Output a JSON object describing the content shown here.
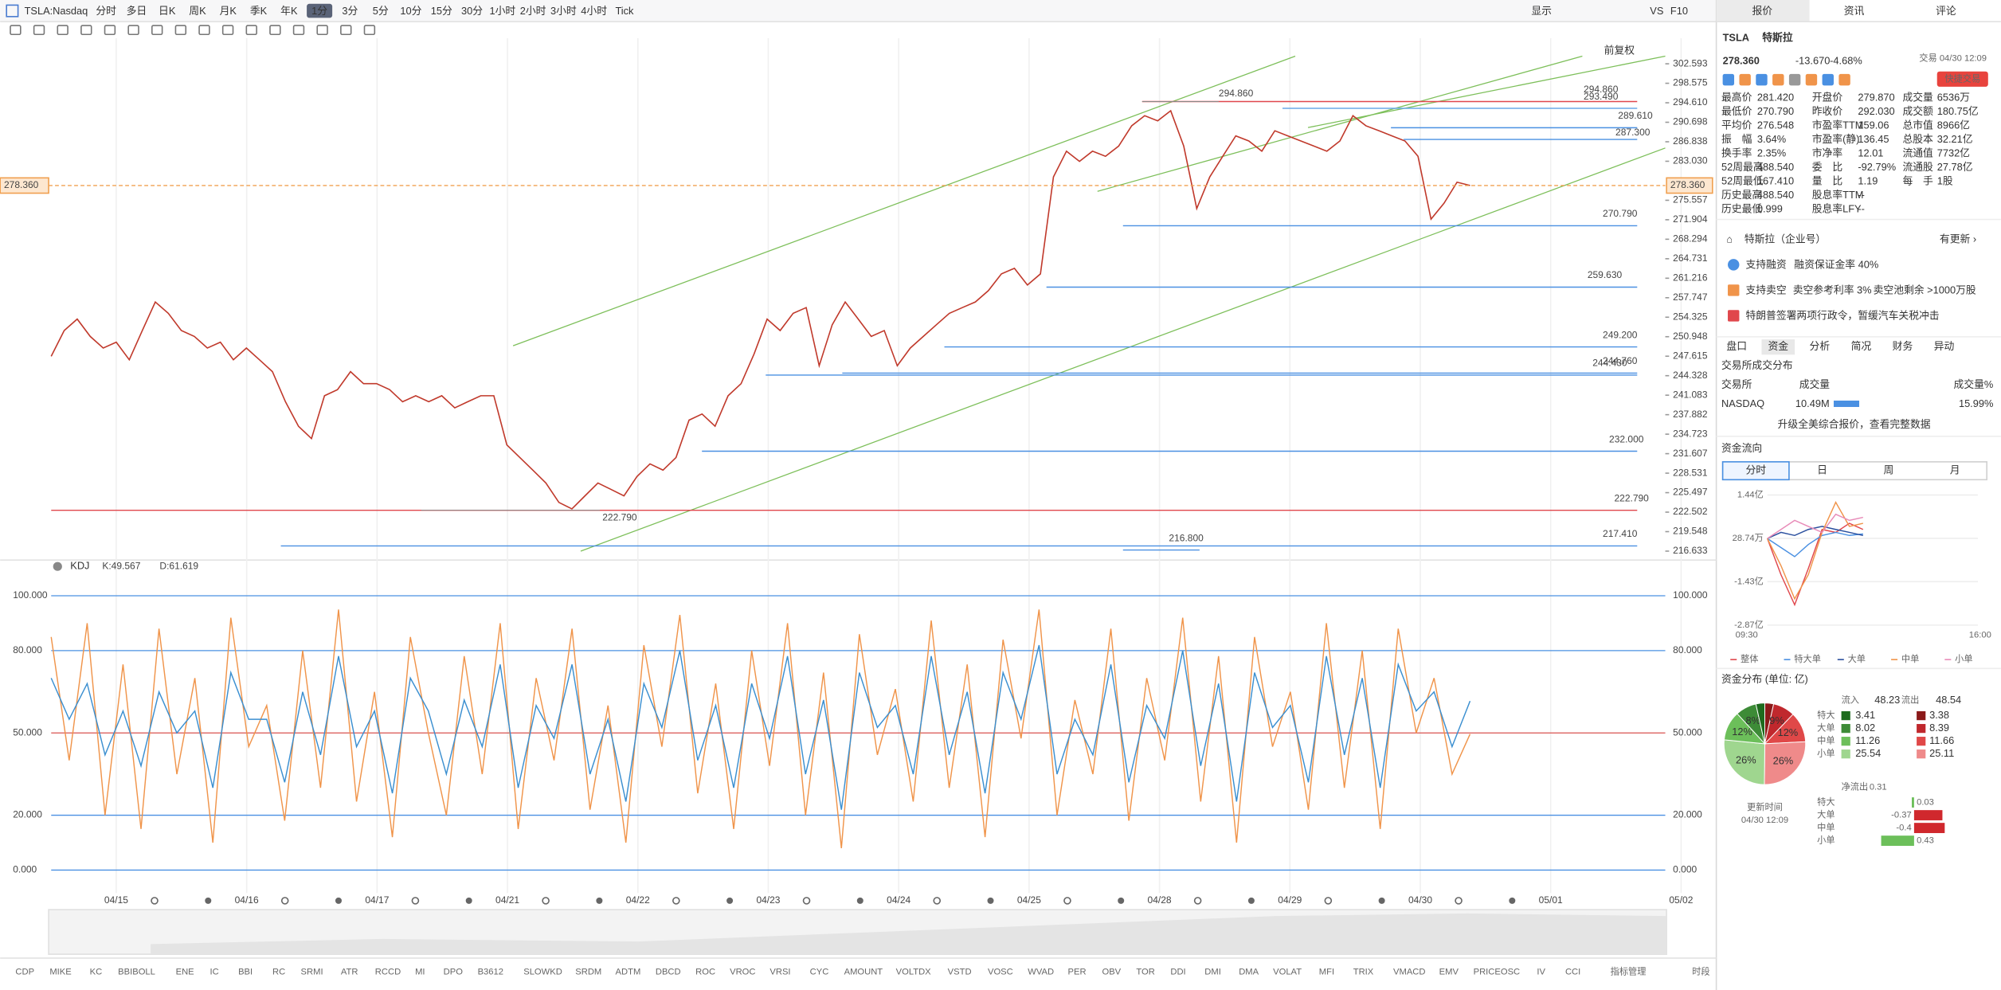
{
  "toolbar": {
    "symbol": "TSLA:Nasdaq",
    "periods": [
      "分时",
      "多日",
      "日K",
      "周K",
      "月K",
      "季K",
      "年K",
      "1分",
      "3分",
      "5分",
      "10分",
      "15分",
      "30分",
      "1小时",
      "2小时",
      "3小时",
      "4小时",
      "Tick"
    ],
    "active_period": "1分",
    "display": "显示",
    "vs": "VS",
    "f10": "F10"
  },
  "price_chart": {
    "type": "line",
    "log_scale": true,
    "color": "#c0392b",
    "adjust": "前复权",
    "ylim": [
      216.633,
      302.593
    ],
    "yticks": [
      302.593,
      298.575,
      {
        "value": 294.61,
        "label": "294.610"
      },
      290.698,
      286.838,
      {
        "value": 283.03,
        "label": "283.030"
      },
      275.557,
      271.904,
      268.294,
      264.731,
      261.216,
      257.747,
      254.325,
      250.948,
      247.615,
      244.328,
      241.083,
      237.882,
      234.723,
      231.607,
      228.531,
      225.497,
      222.502,
      219.548,
      216.633
    ],
    "last_price": {
      "value": 278.36,
      "label": "278.360"
    },
    "values": [
      247.6,
      252,
      254,
      251,
      249,
      250,
      247,
      252,
      257,
      255,
      252,
      251,
      249,
      250,
      247,
      249,
      247,
      245,
      240,
      236,
      234,
      241,
      242,
      245,
      243,
      243,
      242,
      240,
      241,
      240,
      241,
      239,
      240,
      241,
      241,
      233,
      231,
      229,
      227,
      224,
      223,
      225,
      227,
      226,
      225,
      228,
      230,
      229,
      231,
      237,
      238,
      236,
      241,
      243,
      248,
      254,
      252,
      255,
      256,
      246,
      253,
      257,
      254,
      251,
      252,
      246,
      249,
      251,
      253,
      255,
      256,
      257,
      259,
      262,
      263,
      260,
      262,
      280,
      285,
      283,
      285,
      284,
      286,
      290,
      292,
      291,
      293,
      286,
      274,
      280,
      284,
      288,
      287,
      285,
      289,
      288,
      287,
      286,
      285,
      287,
      292,
      290,
      289,
      288,
      287,
      284,
      272,
      275,
      279,
      278.36
    ],
    "annotations": [
      {
        "value": 294.86,
        "label": "294.860"
      },
      {
        "value": 222.79,
        "label": "222.790"
      }
    ],
    "levels": [
      {
        "value": 294.86,
        "label": "294.860",
        "color": "#e0474c"
      },
      {
        "value": 293.49,
        "label": "293.490",
        "color": "#6aa8e8"
      },
      {
        "value": 289.61,
        "label": "289.610",
        "color": "#4a90e2"
      },
      {
        "value": 287.3,
        "label": "287.300",
        "color": "#4a90e2"
      },
      {
        "value": 270.79,
        "label": "270.790",
        "color": "#4a90e2"
      },
      {
        "value": 259.63,
        "label": "259.630",
        "color": "#4a90e2"
      },
      {
        "value": 249.2,
        "label": "249.200",
        "color": "#4a90e2"
      },
      {
        "value": 244.76,
        "label": "244.760",
        "color": "#4a90e2"
      },
      {
        "value": 244.43,
        "label": "244.430",
        "color": "#4a90e2"
      },
      {
        "value": 232,
        "label": "232.000",
        "color": "#4a90e2"
      },
      {
        "value": 222.79,
        "label": "222.790",
        "color": "#e0474c"
      },
      {
        "value": 217.41,
        "label": "217.410",
        "color": "#4a90e2"
      },
      {
        "value": 216.8,
        "label": "216.800",
        "color": "#4a90e2"
      }
    ]
  },
  "date_labels": [
    "04/15",
    "04/16",
    "04/17",
    "04/21",
    "04/22",
    "04/23",
    "04/24",
    "04/25",
    "04/28",
    "04/29",
    "04/30",
    "05/01",
    "05/02"
  ],
  "kdj_chart": {
    "type": "line",
    "indicator": "KDJ",
    "ylim": [
      0,
      100
    ],
    "yticks": [
      {
        "value": 100,
        "label": "100.000",
        "color": "#4a90e2"
      },
      {
        "value": 80,
        "label": "80.000",
        "color": "#4a90e2"
      },
      {
        "value": 50,
        "label": "50.000",
        "color": "#d9534f"
      },
      {
        "value": 20,
        "label": "20.000",
        "color": "#4a90e2"
      },
      {
        "value": 0,
        "label": "0.000",
        "color": "#4a90e2"
      }
    ],
    "series": [
      {
        "name": "K:49.567",
        "color": "#f0944a",
        "values": [
          85,
          40,
          90,
          20,
          75,
          15,
          88,
          35,
          70,
          10,
          92,
          45,
          60,
          18,
          80,
          30,
          95,
          25,
          65,
          12,
          85,
          50,
          20,
          78,
          35,
          90,
          15,
          70,
          40,
          88,
          22,
          60,
          10,
          82,
          45,
          93,
          28,
          68,
          15,
          80,
          38,
          90,
          20,
          72,
          8,
          86,
          42,
          66,
          25,
          91,
          30,
          75,
          12,
          84,
          48,
          95,
          20,
          62,
          35,
          88,
          18,
          70,
          40,
          92,
          25,
          78,
          10,
          85,
          45,
          65,
          22,
          90,
          30,
          80,
          15,
          88,
          50,
          70,
          35,
          49.567
        ]
      },
      {
        "name": "D:61.619",
        "color": "#3b8fd0",
        "values": [
          70,
          55,
          68,
          42,
          58,
          38,
          65,
          50,
          58,
          30,
          72,
          55,
          55,
          32,
          65,
          42,
          78,
          45,
          58,
          28,
          70,
          58,
          35,
          62,
          45,
          75,
          30,
          60,
          48,
          75,
          35,
          55,
          25,
          68,
          52,
          80,
          40,
          60,
          30,
          68,
          48,
          78,
          35,
          62,
          22,
          72,
          52,
          60,
          35,
          78,
          42,
          65,
          28,
          72,
          55,
          82,
          35,
          55,
          42,
          75,
          32,
          60,
          48,
          80,
          38,
          68,
          25,
          72,
          52,
          60,
          32,
          78,
          42,
          70,
          30,
          75,
          58,
          65,
          45,
          61.619
        ]
      }
    ]
  },
  "indicator_tabs": [
    "CDP",
    "MIKE",
    "KC",
    "BBIBOLL",
    "ENE",
    "IC",
    "BBI",
    "RC",
    "SRMI",
    "ATR",
    "RCCD",
    "MI",
    "DPO",
    "B3612",
    "SLOWKD",
    "SRDM",
    "ADTM",
    "DBCD",
    "ROC",
    "VROC",
    "VRSI",
    "CYC",
    "AMOUNT",
    "VOLTDX",
    "VSTD",
    "VOSC",
    "WVAD",
    "PER",
    "OBV",
    "TOR",
    "DDI",
    "DMI",
    "DMA",
    "VOLAT",
    "MFI",
    "TRIX",
    "VMACD",
    "EMV",
    "PRICEOSC",
    "IV",
    "CCI"
  ],
  "indicator_manage": "指标管理",
  "time_range": "时段",
  "side_panel": {
    "tabs": [
      "报价",
      "资讯",
      "评论"
    ],
    "code": "TSLA",
    "name": "特斯拉",
    "price": "278.360",
    "change": "-13.670",
    "change_pct": "-4.68%",
    "time": "交易 04/30 12:09",
    "quick_trade": "快捷交易",
    "stats": [
      [
        {
          "label": "最高价",
          "value": "281.420",
          "color": "#e0474c"
        },
        {
          "label": "开盘价",
          "value": "279.870",
          "color": "#e0474c"
        },
        {
          "label": "成交量",
          "value": "6536万"
        }
      ],
      [
        {
          "label": "最低价",
          "value": "270.790",
          "color": "#e0474c"
        },
        {
          "label": "昨收价",
          "value": "292.030"
        },
        {
          "label": "成交额",
          "value": "180.75亿"
        }
      ],
      [
        {
          "label": "平均价",
          "value": "276.548",
          "color": "#e0474c"
        },
        {
          "label": "市盈率TTM",
          "value": "159.06"
        },
        {
          "label": "总市值",
          "value": "8966亿"
        }
      ],
      [
        {
          "label": "振　幅",
          "value": "3.64%"
        },
        {
          "label": "市盈率(静)",
          "value": "136.45"
        },
        {
          "label": "总股本",
          "value": "32.21亿"
        }
      ],
      [
        {
          "label": "换手率",
          "value": "2.35%"
        },
        {
          "label": "市净率",
          "value": "12.01"
        },
        {
          "label": "流通值",
          "value": "7732亿"
        }
      ],
      [
        {
          "label": "52周最高",
          "value": "488.540",
          "color": "#3a9a3a"
        },
        {
          "label": "委　比",
          "value": "-92.79%",
          "color": "#e0474c"
        },
        {
          "label": "流通股",
          "value": "27.78亿"
        }
      ],
      [
        {
          "label": "52周最低",
          "value": "167.410",
          "color": "#e0474c"
        },
        {
          "label": "量　比",
          "value": "1.19"
        },
        {
          "label": "每　手",
          "value": "1股"
        }
      ],
      [
        {
          "label": "历史最高",
          "value": "488.540",
          "color": "#3a9a3a"
        },
        {
          "label": "股息率TTM",
          "value": "--"
        }
      ],
      [
        {
          "label": "历史最低",
          "value": "0.999",
          "color": "#e0474c"
        },
        {
          "label": "股息率LFY",
          "value": "--"
        }
      ]
    ],
    "company": "特斯拉（企业号）",
    "update": "有更新 ›",
    "margin": [
      "支持融资",
      "融资保证金率 40%"
    ],
    "short": [
      "支持卖空",
      "卖空参考利率 3%",
      "卖空池剩余 >1000万股"
    ],
    "news": "特朗普签署两项行政令，暂缓汽车关税冲击",
    "sub_tabs": [
      "盘口",
      "资金",
      "分析",
      "简况",
      "财务",
      "异动"
    ],
    "active_sub_tab": "资金",
    "exchange_title": "交易所成交分布",
    "exchange_header": [
      "交易所",
      "成交量",
      "成交量%"
    ],
    "exchange_row": [
      "NASDAQ",
      "10.49M",
      "15.99%"
    ],
    "upgrade": "升级全美综合报价，查看完整数据",
    "flow_title": "资金流向",
    "flow_tabs": [
      "分时",
      "日",
      "周",
      "月"
    ],
    "flow_chart": {
      "type": "line",
      "ylim": [
        -2.87,
        1.44
      ],
      "yticks": [
        {
          "value": 1.44,
          "label": "1.44亿"
        },
        {
          "value": 0.002874,
          "label": "28.74万"
        },
        {
          "value": -1.43,
          "label": "-1.43亿"
        },
        {
          "value": -2.87,
          "label": "-2.87亿"
        }
      ],
      "x_labels": [
        "09:30",
        "16:00"
      ],
      "series": [
        {
          "name": "整体",
          "color": "#e0474c",
          "values": [
            0,
            -1.2,
            -2.2,
            -1.0,
            0.3,
            0.2,
            0.5,
            0.3
          ]
        },
        {
          "name": "特大单",
          "color": "#4a90e2",
          "values": [
            0,
            -0.3,
            -0.6,
            -0.2,
            0.1,
            0.2,
            0.1,
            0.15
          ]
        },
        {
          "name": "大单",
          "color": "#2a4f9e",
          "values": [
            0,
            0.2,
            0.1,
            0.3,
            0.4,
            0.3,
            0.2,
            0.1
          ]
        },
        {
          "name": "中单",
          "color": "#f0944a",
          "values": [
            0,
            -0.9,
            -2.0,
            -1.2,
            0.2,
            1.2,
            0.4,
            0.5
          ]
        },
        {
          "name": "小单",
          "color": "#e88bb8",
          "values": [
            0,
            0.3,
            0.6,
            0.4,
            0.2,
            0.8,
            0.6,
            0.7
          ]
        }
      ]
    },
    "dist_title": "资金分布 (单位: 亿)",
    "dist": {
      "type": "pie",
      "in_label": "流入",
      "in_total": "48.23",
      "out_label": "流出",
      "out_total": "48.54",
      "categories": [
        "特大",
        "大单",
        "中单",
        "小单"
      ],
      "in_values": [
        3.41,
        8.02,
        11.26,
        25.54
      ],
      "out_values": [
        3.38,
        8.39,
        11.66,
        25.11
      ],
      "in_colors": [
        "#1e6b1e",
        "#3d8b37",
        "#6cbf5a",
        "#9fd68f"
      ],
      "out_colors": [
        "#8b1a1a",
        "#c0282d",
        "#e04848",
        "#ef8a8a"
      ],
      "in_pct_labels": [
        null,
        "8%",
        "12%",
        "26%"
      ],
      "out_pct_labels": [
        null,
        "9%",
        "12%",
        "26%"
      ]
    },
    "update_time": [
      "更新时间",
      "04/30 12:09"
    ],
    "net_label": "净流出",
    "net_total": "0.31",
    "net_values": [
      0.03,
      -0.37,
      -0.4,
      0.43
    ]
  }
}
